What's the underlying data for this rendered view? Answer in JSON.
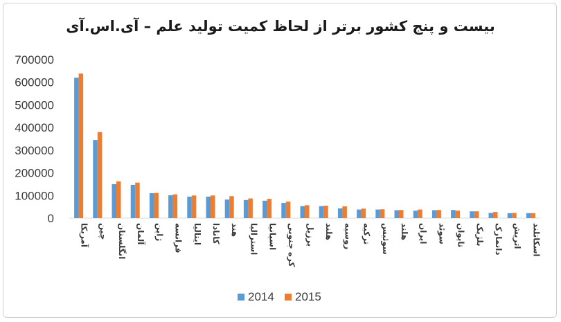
{
  "chart_data": {
    "type": "bar",
    "title": "بیست و پنج کشور برتر از لحاظ کمیت تولید علم – آی.اس.آی",
    "categories": [
      "آمریکا",
      "چین",
      "انگلستان",
      "آلمان",
      "ژاپن",
      "فرانسه",
      "ایتالیا",
      "کانادا",
      "هند",
      "استرالیا",
      "اسپانیا",
      "کره جنوبی",
      "برزیل",
      "هلند",
      "روسیه",
      "ترکیه",
      "سوئیس",
      "هلند",
      "ایران",
      "سوئد",
      "تایوان",
      "بلژیک",
      "دانمارک",
      "اتریش",
      "اسکاتلند"
    ],
    "series": [
      {
        "name": "2014",
        "color": "#5b9bd5",
        "values": [
          620000,
          345000,
          150000,
          147000,
          110000,
          101000,
          95000,
          95000,
          82000,
          80000,
          77000,
          67000,
          53000,
          53000,
          43000,
          38000,
          38000,
          35000,
          33000,
          35000,
          36000,
          30000,
          23000,
          22000,
          22000
        ]
      },
      {
        "name": "2015",
        "color": "#ed7d31",
        "values": [
          638000,
          380000,
          162000,
          157000,
          111000,
          105000,
          100000,
          100000,
          97000,
          87000,
          85000,
          73000,
          57000,
          55000,
          52000,
          42000,
          39000,
          36000,
          38000,
          36000,
          33000,
          30000,
          27000,
          23000,
          22000
        ]
      }
    ],
    "yticks": [
      "0",
      "100000",
      "200000",
      "300000",
      "400000",
      "500000",
      "600000",
      "700000"
    ],
    "ylim": [
      0,
      700000
    ],
    "xlabel": "",
    "ylabel": "",
    "grid": false,
    "legend_position": "bottom"
  }
}
